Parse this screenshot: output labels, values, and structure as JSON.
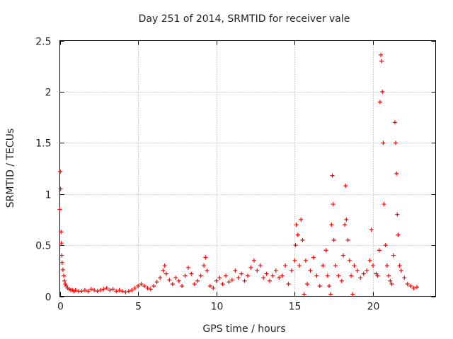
{
  "chart_data": {
    "type": "scatter",
    "title": "Day 251 of 2014, SRMTID for receiver vale",
    "xlabel": "GPS time / hours",
    "ylabel": "SRMTID / TECUs",
    "xlim": [
      0,
      24
    ],
    "ylim": [
      0,
      2.5
    ],
    "xticks": [
      0,
      5,
      10,
      15,
      20
    ],
    "yticks": [
      0,
      0.5,
      1,
      1.5,
      2,
      2.5
    ],
    "xtick_labels": [
      "0",
      "5",
      "10",
      "15",
      "20"
    ],
    "ytick_labels": [
      "0",
      "0.5",
      "1",
      "1.5",
      "2",
      "2.5"
    ],
    "grid": true,
    "marker": "+",
    "color": "#ff0000",
    "series": [
      {
        "name": "SRMTID",
        "x": [
          0.0,
          0.03,
          0.05,
          0.08,
          0.1,
          0.13,
          0.15,
          0.2,
          0.25,
          0.3,
          0.35,
          0.4,
          0.5,
          0.6,
          0.7,
          0.8,
          0.9,
          1.0,
          1.2,
          1.4,
          1.6,
          1.8,
          2.0,
          2.2,
          2.4,
          2.6,
          2.8,
          3.0,
          3.2,
          3.4,
          3.6,
          3.8,
          4.0,
          4.2,
          4.4,
          4.6,
          4.8,
          5.0,
          5.2,
          5.4,
          5.6,
          5.8,
          6.0,
          6.2,
          6.4,
          6.6,
          6.7,
          6.8,
          7.0,
          7.2,
          7.4,
          7.6,
          7.8,
          8.0,
          8.2,
          8.4,
          8.6,
          8.8,
          9.0,
          9.2,
          9.3,
          9.4,
          9.6,
          9.8,
          10.0,
          10.2,
          10.4,
          10.6,
          10.8,
          11.0,
          11.2,
          11.4,
          11.6,
          11.8,
          12.0,
          12.2,
          12.4,
          12.6,
          12.8,
          13.0,
          13.2,
          13.4,
          13.6,
          13.8,
          14.0,
          14.2,
          14.4,
          14.6,
          14.8,
          15.0,
          15.05,
          15.1,
          15.2,
          15.3,
          15.4,
          15.5,
          15.6,
          15.7,
          15.8,
          16.0,
          16.2,
          16.4,
          16.6,
          16.8,
          17.0,
          17.1,
          17.2,
          17.3,
          17.35,
          17.4,
          17.45,
          17.5,
          17.6,
          17.8,
          18.0,
          18.1,
          18.2,
          18.25,
          18.3,
          18.4,
          18.5,
          18.6,
          18.7,
          18.8,
          19.0,
          19.2,
          19.4,
          19.6,
          19.8,
          19.9,
          20.0,
          20.2,
          20.3,
          20.4,
          20.45,
          20.5,
          20.55,
          20.6,
          20.65,
          20.7,
          20.8,
          20.9,
          21.0,
          21.1,
          21.2,
          21.3,
          21.4,
          21.45,
          21.5,
          21.55,
          21.6,
          21.7,
          21.8,
          22.0,
          22.2,
          22.4,
          22.6,
          22.8
        ],
        "y": [
          0.85,
          1.22,
          1.05,
          0.63,
          0.52,
          0.4,
          0.33,
          0.26,
          0.2,
          0.15,
          0.12,
          0.1,
          0.08,
          0.07,
          0.06,
          0.06,
          0.05,
          0.06,
          0.05,
          0.05,
          0.06,
          0.05,
          0.07,
          0.06,
          0.05,
          0.06,
          0.07,
          0.08,
          0.06,
          0.07,
          0.05,
          0.06,
          0.05,
          0.04,
          0.05,
          0.06,
          0.08,
          0.1,
          0.12,
          0.1,
          0.08,
          0.07,
          0.1,
          0.14,
          0.18,
          0.25,
          0.3,
          0.22,
          0.16,
          0.12,
          0.18,
          0.15,
          0.1,
          0.2,
          0.28,
          0.22,
          0.12,
          0.15,
          0.2,
          0.3,
          0.38,
          0.25,
          0.1,
          0.08,
          0.15,
          0.18,
          0.12,
          0.2,
          0.14,
          0.16,
          0.25,
          0.18,
          0.22,
          0.15,
          0.2,
          0.28,
          0.35,
          0.25,
          0.3,
          0.18,
          0.22,
          0.15,
          0.2,
          0.25,
          0.18,
          0.2,
          0.3,
          0.12,
          0.25,
          0.35,
          0.5,
          0.7,
          0.6,
          0.3,
          0.75,
          0.55,
          0.02,
          0.35,
          0.12,
          0.25,
          0.38,
          0.2,
          0.1,
          0.3,
          0.45,
          0.2,
          0.1,
          0.02,
          0.7,
          1.18,
          0.9,
          0.55,
          0.3,
          0.2,
          0.15,
          0.4,
          0.7,
          1.08,
          0.75,
          0.55,
          0.35,
          0.2,
          0.02,
          0.3,
          0.25,
          0.18,
          0.22,
          0.25,
          0.35,
          0.65,
          0.3,
          0.22,
          0.2,
          0.45,
          1.9,
          2.36,
          2.3,
          2.0,
          1.5,
          0.9,
          0.5,
          0.3,
          0.2,
          0.15,
          0.12,
          0.4,
          1.7,
          1.5,
          1.2,
          0.8,
          0.6,
          0.3,
          0.25,
          0.18,
          0.12,
          0.1,
          0.08,
          0.09
        ]
      }
    ]
  }
}
